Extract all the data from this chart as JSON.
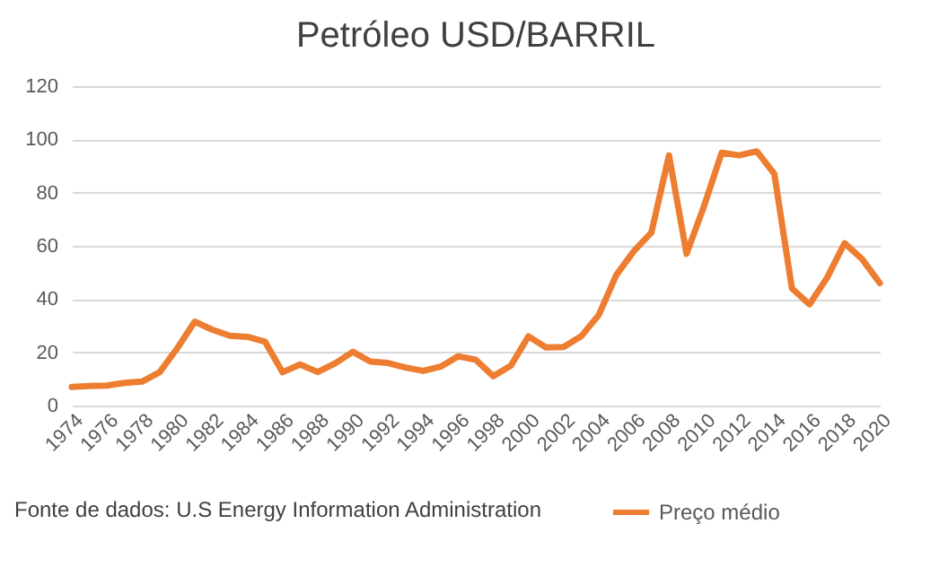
{
  "chart_data": {
    "type": "line",
    "title": "Petróleo USD/BARRIL",
    "x": [
      1974,
      1975,
      1976,
      1977,
      1978,
      1979,
      1980,
      1981,
      1982,
      1983,
      1984,
      1985,
      1986,
      1987,
      1988,
      1989,
      1990,
      1991,
      1992,
      1993,
      1994,
      1995,
      1996,
      1997,
      1998,
      1999,
      2000,
      2001,
      2002,
      2003,
      2004,
      2005,
      2006,
      2007,
      2008,
      2009,
      2010,
      2011,
      2012,
      2013,
      2014,
      2015,
      2016,
      2017,
      2018,
      2019,
      2020
    ],
    "series": [
      {
        "name": "Preço médio",
        "color": "#ed7d31",
        "values": [
          7,
          7.3,
          7.5,
          8.5,
          9,
          12.5,
          21.5,
          31.5,
          28.5,
          26.2,
          25.8,
          24,
          12.5,
          15.4,
          12.6,
          15.9,
          20.2,
          16.5,
          16,
          14.3,
          13,
          14.6,
          18.5,
          17.2,
          11,
          15,
          26,
          21.8,
          22,
          26,
          34,
          49,
          58,
          65,
          94,
          57,
          75,
          95,
          94,
          95.5,
          87,
          44,
          38,
          48,
          61,
          55,
          46
        ]
      }
    ],
    "xlim": [
      1974,
      2020
    ],
    "xticks": [
      1974,
      1976,
      1978,
      1980,
      1982,
      1984,
      1986,
      1988,
      1990,
      1992,
      1994,
      1996,
      1998,
      2000,
      2002,
      2004,
      2006,
      2008,
      2010,
      2012,
      2014,
      2016,
      2018,
      2020
    ],
    "ylim": [
      0,
      120
    ],
    "yticks": [
      0,
      20,
      40,
      60,
      80,
      100,
      120
    ],
    "grid": "y",
    "legend": "bottom right",
    "marker": "none",
    "line_style": "solid",
    "annotations": [
      "Fonte de dados: U.S Energy Information Administration"
    ]
  }
}
